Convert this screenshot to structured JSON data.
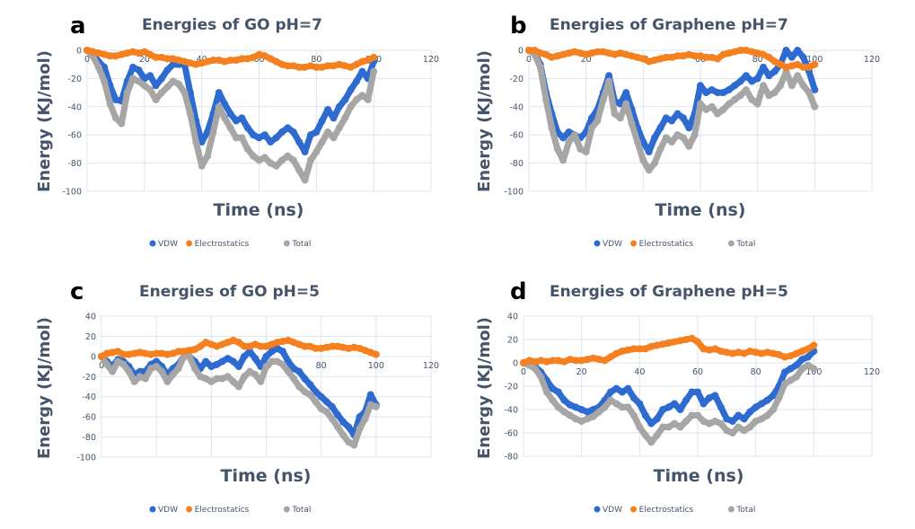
{
  "figure": {
    "legend": [
      {
        "key": "vdw",
        "label": "VDW",
        "color": "#2e6bd1"
      },
      {
        "key": "elec",
        "label": "Electrostatics",
        "color": "#f58020"
      },
      {
        "key": "total",
        "label": "Total",
        "color": "#a6a6a6"
      }
    ]
  },
  "chart_data": [
    {
      "panel": "a",
      "type": "scatter",
      "title": "Energies of GO pH=7",
      "xlabel": "Time (ns)",
      "ylabel": "Energy (KJ/mol)",
      "xlim": [
        0,
        120
      ],
      "ylim": [
        -100,
        0
      ],
      "xticks": [
        0,
        20,
        40,
        60,
        80,
        100,
        120
      ],
      "yticks": [
        0,
        -20,
        -40,
        -60,
        -80,
        -100
      ],
      "grid": true,
      "legend_position": "bottom",
      "x": [
        0,
        2,
        4,
        6,
        8,
        10,
        12,
        14,
        16,
        18,
        20,
        22,
        24,
        26,
        28,
        30,
        32,
        34,
        36,
        38,
        40,
        42,
        44,
        46,
        48,
        50,
        52,
        54,
        56,
        58,
        60,
        62,
        64,
        66,
        68,
        70,
        72,
        74,
        76,
        78,
        80,
        82,
        84,
        86,
        88,
        90,
        92,
        94,
        96,
        98,
        100
      ],
      "series": [
        {
          "name": "VDW",
          "values": [
            0,
            -2,
            -8,
            -12,
            -25,
            -35,
            -36,
            -22,
            -12,
            -14,
            -20,
            -18,
            -25,
            -20,
            -14,
            -10,
            -10,
            -10,
            -30,
            -50,
            -65,
            -58,
            -45,
            -30,
            -38,
            -45,
            -50,
            -48,
            -55,
            -60,
            -62,
            -60,
            -65,
            -62,
            -58,
            -55,
            -58,
            -65,
            -72,
            -60,
            -58,
            -50,
            -42,
            -48,
            -40,
            -35,
            -28,
            -22,
            -15,
            -20,
            -8
          ]
        },
        {
          "name": "Electrostatics",
          "values": [
            0,
            -1,
            -2,
            -3,
            -4,
            -4,
            -3,
            -2,
            -1,
            -2,
            -1,
            -3,
            -5,
            -5,
            -6,
            -6,
            -7,
            -8,
            -9,
            -10,
            -9,
            -8,
            -7,
            -7,
            -8,
            -7,
            -7,
            -6,
            -6,
            -5,
            -3,
            -4,
            -6,
            -8,
            -10,
            -11,
            -11,
            -12,
            -12,
            -11,
            -12,
            -12,
            -11,
            -11,
            -10,
            -11,
            -12,
            -10,
            -8,
            -7,
            -5
          ]
        },
        {
          "name": "Total",
          "values": [
            0,
            -4,
            -12,
            -22,
            -38,
            -48,
            -52,
            -30,
            -20,
            -22,
            -25,
            -28,
            -35,
            -30,
            -26,
            -22,
            -24,
            -30,
            -45,
            -65,
            -82,
            -75,
            -58,
            -40,
            -48,
            -55,
            -62,
            -62,
            -70,
            -75,
            -78,
            -76,
            -80,
            -82,
            -78,
            -75,
            -78,
            -85,
            -92,
            -78,
            -72,
            -65,
            -58,
            -62,
            -55,
            -48,
            -40,
            -35,
            -32,
            -35,
            -15
          ]
        }
      ]
    },
    {
      "panel": "b",
      "type": "scatter",
      "title": "Energies of Graphene pH=7",
      "xlabel": "Time (ns)",
      "ylabel": "Energy (KJ/mol)",
      "xlim": [
        0,
        120
      ],
      "ylim": [
        -100,
        0
      ],
      "xticks": [
        0,
        20,
        40,
        60,
        80,
        100,
        120
      ],
      "yticks": [
        0,
        -20,
        -40,
        -60,
        -80,
        -100
      ],
      "grid": true,
      "legend_position": "bottom",
      "x": [
        0,
        2,
        4,
        6,
        8,
        10,
        12,
        14,
        16,
        18,
        20,
        22,
        24,
        26,
        28,
        30,
        32,
        34,
        36,
        38,
        40,
        42,
        44,
        46,
        48,
        50,
        52,
        54,
        56,
        58,
        60,
        62,
        64,
        66,
        68,
        70,
        72,
        74,
        76,
        78,
        80,
        82,
        84,
        86,
        88,
        90,
        92,
        94,
        96,
        98,
        100
      ],
      "series": [
        {
          "name": "VDW",
          "values": [
            0,
            -2,
            -10,
            -30,
            -45,
            -58,
            -62,
            -58,
            -60,
            -62,
            -58,
            -48,
            -42,
            -30,
            -18,
            -36,
            -38,
            -30,
            -42,
            -55,
            -65,
            -72,
            -62,
            -55,
            -48,
            -50,
            -45,
            -48,
            -55,
            -45,
            -25,
            -30,
            -28,
            -30,
            -30,
            -28,
            -25,
            -22,
            -18,
            -22,
            -20,
            -12,
            -18,
            -15,
            -10,
            0,
            -5,
            0,
            -5,
            -15,
            -28
          ]
        },
        {
          "name": "Electrostatics",
          "values": [
            0,
            0,
            -2,
            -3,
            -5,
            -4,
            -3,
            -2,
            -1,
            -2,
            -3,
            -2,
            -1,
            -1,
            -2,
            -3,
            -2,
            -3,
            -4,
            -5,
            -6,
            -8,
            -7,
            -6,
            -5,
            -5,
            -4,
            -4,
            -3,
            -4,
            -4,
            -5,
            -5,
            -6,
            -3,
            -2,
            -1,
            0,
            0,
            -1,
            -2,
            -3,
            -5,
            -8,
            -10,
            -12,
            -11,
            -10,
            -12,
            -12,
            -10
          ]
        },
        {
          "name": "Total",
          "values": [
            0,
            -3,
            -12,
            -35,
            -55,
            -70,
            -78,
            -65,
            -60,
            -70,
            -72,
            -55,
            -50,
            -35,
            -22,
            -45,
            -48,
            -38,
            -52,
            -65,
            -78,
            -85,
            -80,
            -70,
            -62,
            -65,
            -60,
            -62,
            -68,
            -60,
            -38,
            -42,
            -40,
            -45,
            -42,
            -38,
            -35,
            -32,
            -28,
            -35,
            -38,
            -25,
            -32,
            -30,
            -25,
            -15,
            -25,
            -18,
            -25,
            -30,
            -40
          ]
        }
      ]
    },
    {
      "panel": "c",
      "type": "scatter",
      "title": "Energies of GO pH=5",
      "xlabel": "Time (ns)",
      "ylabel": "Energy (KJ/mol)",
      "xlim": [
        0,
        120
      ],
      "ylim": [
        -100,
        40
      ],
      "xticks": [
        0,
        20,
        40,
        60,
        80,
        100,
        120
      ],
      "yticks": [
        40,
        20,
        0,
        -20,
        -40,
        -60,
        -80,
        -100
      ],
      "grid": true,
      "legend_position": "bottom",
      "x": [
        0,
        2,
        4,
        6,
        8,
        10,
        12,
        14,
        16,
        18,
        20,
        22,
        24,
        26,
        28,
        30,
        32,
        34,
        36,
        38,
        40,
        42,
        44,
        46,
        48,
        50,
        52,
        54,
        56,
        58,
        60,
        62,
        64,
        66,
        68,
        70,
        72,
        74,
        76,
        78,
        80,
        82,
        84,
        86,
        88,
        90,
        92,
        94,
        96,
        98,
        100
      ],
      "series": [
        {
          "name": "VDW",
          "values": [
            0,
            -5,
            -10,
            -3,
            -5,
            -10,
            -18,
            -15,
            -15,
            -8,
            -5,
            -10,
            -18,
            -12,
            -8,
            0,
            0,
            -5,
            -12,
            -5,
            -10,
            -8,
            -5,
            -2,
            -5,
            -10,
            0,
            5,
            -2,
            -10,
            0,
            5,
            8,
            5,
            -5,
            -12,
            -15,
            -22,
            -28,
            -35,
            -40,
            -45,
            -50,
            -58,
            -65,
            -70,
            -78,
            -60,
            -55,
            -38,
            -48
          ]
        },
        {
          "name": "Electrostatics",
          "values": [
            0,
            3,
            4,
            5,
            2,
            2,
            3,
            4,
            3,
            2,
            3,
            3,
            2,
            3,
            5,
            5,
            6,
            7,
            10,
            14,
            12,
            10,
            12,
            14,
            16,
            14,
            10,
            10,
            12,
            10,
            10,
            12,
            14,
            15,
            16,
            14,
            12,
            10,
            10,
            8,
            8,
            9,
            10,
            10,
            9,
            8,
            9,
            8,
            6,
            4,
            2
          ]
        },
        {
          "name": "Total",
          "values": [
            0,
            -8,
            -15,
            -5,
            -8,
            -15,
            -25,
            -20,
            -22,
            -12,
            -10,
            -15,
            -25,
            -18,
            -12,
            0,
            0,
            -12,
            -20,
            -22,
            -25,
            -22,
            -22,
            -20,
            -25,
            -30,
            -20,
            -15,
            -18,
            -25,
            -10,
            -5,
            -5,
            -8,
            -15,
            -22,
            -30,
            -35,
            -38,
            -45,
            -52,
            -55,
            -62,
            -70,
            -78,
            -85,
            -88,
            -72,
            -62,
            -48,
            -50
          ]
        }
      ]
    },
    {
      "panel": "d",
      "type": "scatter",
      "title": "Energies of Graphene pH=5",
      "xlabel": "Time (ns)",
      "ylabel": "Energy (KJ/mol)",
      "xlim": [
        0,
        120
      ],
      "ylim": [
        -80,
        40
      ],
      "xticks": [
        0,
        20,
        40,
        60,
        80,
        100,
        120
      ],
      "yticks": [
        40,
        20,
        0,
        -20,
        -40,
        -60,
        -80
      ],
      "grid": true,
      "legend_position": "bottom",
      "x": [
        0,
        2,
        4,
        6,
        8,
        10,
        12,
        14,
        16,
        18,
        20,
        22,
        24,
        26,
        28,
        30,
        32,
        34,
        36,
        38,
        40,
        42,
        44,
        46,
        48,
        50,
        52,
        54,
        56,
        58,
        60,
        62,
        64,
        66,
        68,
        70,
        72,
        74,
        76,
        78,
        80,
        82,
        84,
        86,
        88,
        90,
        92,
        94,
        96,
        98,
        100
      ],
      "series": [
        {
          "name": "VDW",
          "values": [
            0,
            -2,
            -3,
            -8,
            -15,
            -22,
            -25,
            -32,
            -36,
            -38,
            -40,
            -42,
            -40,
            -38,
            -32,
            -25,
            -22,
            -25,
            -22,
            -30,
            -35,
            -45,
            -52,
            -48,
            -40,
            -38,
            -35,
            -40,
            -32,
            -25,
            -25,
            -35,
            -30,
            -28,
            -38,
            -48,
            -50,
            -45,
            -48,
            -42,
            -38,
            -35,
            -32,
            -28,
            -20,
            -8,
            -5,
            -2,
            3,
            5,
            10
          ]
        },
        {
          "name": "Electrostatics",
          "values": [
            0,
            2,
            1,
            2,
            1,
            2,
            2,
            1,
            3,
            2,
            2,
            3,
            4,
            3,
            2,
            5,
            8,
            10,
            11,
            12,
            12,
            12,
            14,
            15,
            16,
            17,
            18,
            19,
            20,
            21,
            18,
            12,
            11,
            12,
            10,
            9,
            8,
            9,
            8,
            10,
            9,
            8,
            9,
            8,
            7,
            5,
            6,
            8,
            10,
            12,
            15
          ]
        },
        {
          "name": "Total",
          "values": [
            0,
            -2,
            -5,
            -12,
            -25,
            -32,
            -38,
            -42,
            -45,
            -48,
            -50,
            -48,
            -46,
            -42,
            -38,
            -32,
            -35,
            -38,
            -38,
            -45,
            -55,
            -62,
            -68,
            -62,
            -55,
            -55,
            -52,
            -55,
            -50,
            -45,
            -45,
            -50,
            -52,
            -50,
            -52,
            -58,
            -60,
            -55,
            -58,
            -55,
            -50,
            -48,
            -45,
            -40,
            -30,
            -18,
            -15,
            -12,
            -5,
            -2,
            -5
          ]
        }
      ]
    }
  ]
}
